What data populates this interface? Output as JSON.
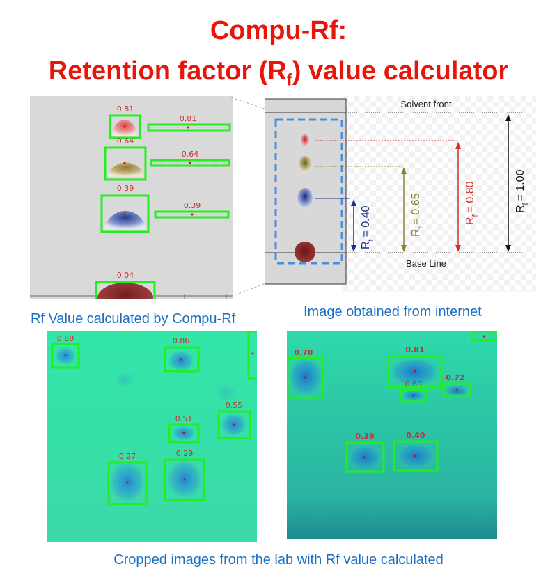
{
  "title": {
    "line1": "Compu-Rf:",
    "line2_prefix": "Retention factor (R",
    "line2_sub": "f",
    "line2_suffix": ") value calculator"
  },
  "captions": {
    "compu_rf": "Rf Value calculated by Compu-Rf",
    "internet": "Image obtained from internet",
    "lab": "Cropped images from the lab with Rf value calculated"
  },
  "compu_panel": {
    "spot_values": [
      "0.81",
      "0.64",
      "0.39",
      "0.04"
    ],
    "bar_values": [
      "0.81",
      "0.64",
      "0.39"
    ]
  },
  "tlc_diagram": {
    "solvent_front": "Solvent front",
    "base_line": "Base Line",
    "rf_prefix": "R",
    "rf_sub": "f",
    "rf_labels": [
      "= 0.40",
      "= 0.65",
      "= 0.80",
      "= 1.00"
    ]
  },
  "lab_image_1": {
    "values": [
      "0.88",
      "0.86",
      "0.55",
      "0.51",
      "0.27",
      "0.29"
    ]
  },
  "lab_image_2": {
    "values": [
      "0.78",
      "0.81",
      "0.69",
      "0.72",
      "0.39",
      "0.40"
    ]
  },
  "colors": {
    "title": "#e8150b",
    "caption": "#1a6fc4",
    "box": "#22ee22",
    "plate_bg": "#2ee6a6"
  }
}
